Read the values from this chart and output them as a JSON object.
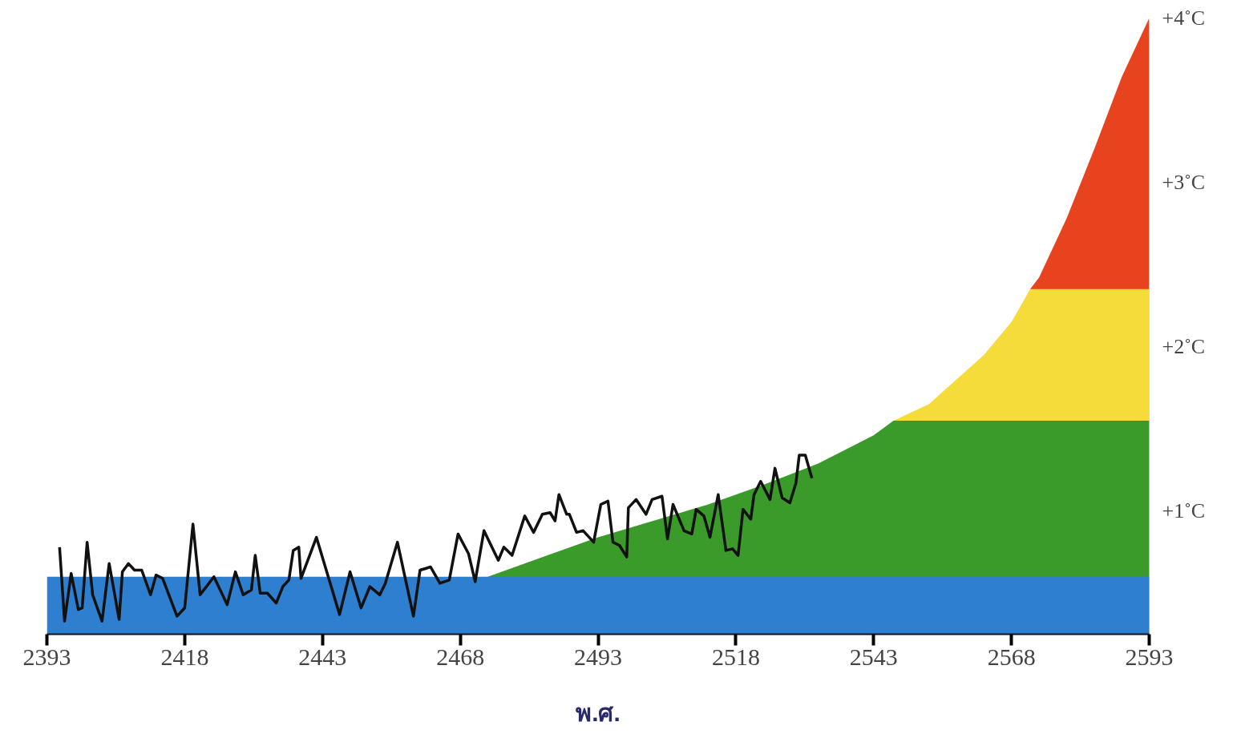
{
  "chart_data": {
    "type": "area",
    "xlabel": "พ.ศ.",
    "xlim": [
      2393,
      2593
    ],
    "xticks": [
      2393,
      2418,
      2443,
      2468,
      2493,
      2518,
      2543,
      2568,
      2593
    ],
    "ylim": [
      0.25,
      4
    ],
    "yticks": [
      {
        "value": 1,
        "label": "+1˚C"
      },
      {
        "value": 2,
        "label": "+2˚C"
      },
      {
        "value": 3,
        "label": "+3˚C"
      },
      {
        "value": 4,
        "label": "+4˚C"
      }
    ],
    "grid": false,
    "series": [
      {
        "color": "#e8431f",
        "x": [
          2571.4,
          2573,
          2578,
          2583,
          2588,
          2593
        ],
        "values": [
          2.35,
          2.42,
          2.78,
          3.2,
          3.64,
          4.0
        ]
      },
      {
        "color": "#f5dc3a",
        "x": [
          2546.6,
          2553,
          2563,
          2568,
          2571.4,
          2573,
          2578,
          2583,
          2588,
          2593
        ],
        "values": [
          1.55,
          1.65,
          1.95,
          2.15,
          2.35,
          2.35,
          2.35,
          2.35,
          2.35,
          2.35
        ]
      },
      {
        "color": "#3a9a2a",
        "x": [
          2473,
          2483,
          2493,
          2503,
          2513,
          2523,
          2533,
          2543,
          2546.6,
          2553,
          2563,
          2568,
          2573,
          2578,
          2583,
          2588,
          2593
        ],
        "values": [
          0.6,
          0.72,
          0.84,
          0.94,
          1.04,
          1.16,
          1.29,
          1.46,
          1.55,
          1.55,
          1.55,
          1.55,
          1.55,
          1.55,
          1.55,
          1.55,
          1.55
        ]
      },
      {
        "color": "#2f7fd0",
        "x": [
          2393,
          2433,
          2473,
          2513,
          2553,
          2593
        ],
        "values": [
          0.6,
          0.6,
          0.6,
          0.6,
          0.6,
          0.6
        ]
      },
      {
        "type": "line",
        "color": "#111111",
        "line_style": "solid",
        "x": [
          2395.3,
          2396.2,
          2397.4,
          2398.7,
          2399.4,
          2400.3,
          2401.3,
          2403.0,
          2404.3,
          2406.1,
          2406.7,
          2407.8,
          2408.9,
          2410.2,
          2411.8,
          2412.8,
          2414.0,
          2416.6,
          2418.0,
          2419.5,
          2420.8,
          2423.3,
          2425.7,
          2427.2,
          2428.6,
          2430.1,
          2430.8,
          2431.7,
          2433.0,
          2434.6,
          2435.8,
          2436.9,
          2437.7,
          2438.7,
          2439.1,
          2441.9,
          2446.1,
          2448.0,
          2450.0,
          2451.6,
          2453.4,
          2454.4,
          2456.6,
          2459.5,
          2460.7,
          2461.7,
          2462.6,
          2464.3,
          2466.0,
          2467.6,
          2469.5,
          2470.7,
          2472.3,
          2474.9,
          2475.9,
          2477.4,
          2479.7,
          2481.3,
          2482.9,
          2484.3,
          2485.2,
          2485.9,
          2487.3,
          2487.8,
          2489.1,
          2490.3,
          2492.2,
          2493.5,
          2494.8,
          2495.7,
          2496.9,
          2498.2,
          2498.5,
          2499.9,
          2501.7,
          2502.8,
          2504.6,
          2505.6,
          2506.6,
          2508.6,
          2510.0,
          2510.8,
          2512.2,
          2513.3,
          2514.8,
          2516.2,
          2517.4,
          2518.4,
          2519.3,
          2520.7,
          2521.3,
          2522.5,
          2524.2,
          2525.1,
          2526.4,
          2527.8,
          2528.9,
          2529.5,
          2530.6,
          2531.8
        ],
        "values": [
          0.78,
          0.33,
          0.62,
          0.4,
          0.41,
          0.81,
          0.49,
          0.33,
          0.68,
          0.34,
          0.63,
          0.68,
          0.64,
          0.64,
          0.49,
          0.61,
          0.59,
          0.36,
          0.41,
          0.92,
          0.49,
          0.6,
          0.43,
          0.63,
          0.49,
          0.52,
          0.73,
          0.5,
          0.5,
          0.44,
          0.54,
          0.58,
          0.76,
          0.78,
          0.59,
          0.84,
          0.37,
          0.63,
          0.41,
          0.54,
          0.49,
          0.56,
          0.81,
          0.36,
          0.64,
          0.65,
          0.66,
          0.56,
          0.58,
          0.86,
          0.74,
          0.57,
          0.88,
          0.7,
          0.78,
          0.73,
          0.97,
          0.87,
          0.98,
          0.99,
          0.94,
          1.1,
          0.98,
          0.98,
          0.87,
          0.88,
          0.81,
          1.04,
          1.06,
          0.81,
          0.79,
          0.72,
          1.02,
          1.07,
          0.98,
          1.07,
          1.09,
          0.83,
          1.04,
          0.88,
          0.86,
          1.01,
          0.97,
          0.84,
          1.1,
          0.76,
          0.77,
          0.73,
          1.01,
          0.95,
          1.1,
          1.18,
          1.07,
          1.26,
          1.08,
          1.05,
          1.17,
          1.34,
          1.34,
          1.2
        ]
      }
    ]
  }
}
